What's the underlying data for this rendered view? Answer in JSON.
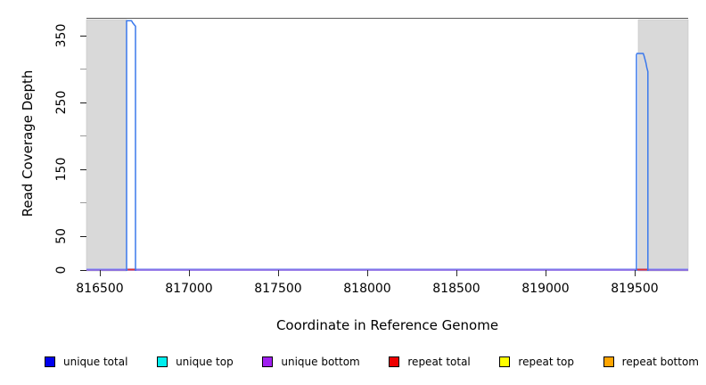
{
  "figure": {
    "xlabel": "Coordinate in Reference Genome",
    "ylabel": "Read Coverage Depth"
  },
  "colors": {
    "masked_region_fill": "#d9d9d9",
    "masked_region_edge": "#c4c4c4",
    "coverage_line": "#3b79ec",
    "repeat_line": "#e13030",
    "zero_line_top": "#93a2f3",
    "zero_line_bottom": "#7c57e2",
    "frame": "#5a5a5a"
  },
  "legend": {
    "items": [
      {
        "label": "unique total",
        "color": "#0000ee"
      },
      {
        "label": "unique top",
        "color": "#00eeee"
      },
      {
        "label": "unique bottom",
        "color": "#a020f0"
      },
      {
        "label": "repeat total",
        "color": "#ee0000"
      },
      {
        "label": "repeat top",
        "color": "#ffff00"
      },
      {
        "label": "repeat bottom",
        "color": "#ffa500"
      }
    ]
  },
  "chart_data": {
    "type": "line",
    "title": "",
    "xlabel": "Coordinate in Reference Genome",
    "ylabel": "Read Coverage Depth",
    "xlim": [
      816425,
      819800
    ],
    "ylim": [
      0,
      377
    ],
    "grid": false,
    "legend_position": "bottom",
    "x_ticks": [
      {
        "value": 816500,
        "label": "816500"
      },
      {
        "value": 817000,
        "label": "817000"
      },
      {
        "value": 817500,
        "label": "817500"
      },
      {
        "value": 818000,
        "label": "818000"
      },
      {
        "value": 818500,
        "label": "818500"
      },
      {
        "value": 819000,
        "label": "819000"
      },
      {
        "value": 819500,
        "label": "819500"
      }
    ],
    "y_ticks_major": [
      {
        "value": 0,
        "label": "0"
      },
      {
        "value": 50,
        "label": "50"
      },
      {
        "value": 150,
        "label": "150"
      },
      {
        "value": 250,
        "label": "250"
      },
      {
        "value": 350,
        "label": "350"
      }
    ],
    "y_ticks_minor": [
      100,
      200,
      300
    ],
    "masked_regions": [
      {
        "x0": 816425,
        "x1": 816650
      },
      {
        "x0": 819520,
        "x1": 819800
      }
    ],
    "series": [
      {
        "name": "unique total",
        "color": "#0000ee",
        "baseline_depth": 0,
        "peaks": [
          {
            "points": [
              [
                816650,
                0
              ],
              [
                816650,
                374
              ],
              [
                816678,
                374
              ],
              [
                816684,
                371
              ],
              [
                816690,
                369
              ],
              [
                816696,
                367
              ],
              [
                816700,
                366
              ],
              [
                816700,
                0
              ]
            ]
          },
          {
            "points": [
              [
                819510,
                0
              ],
              [
                819510,
                323
              ],
              [
                819513,
                325
              ],
              [
                819548,
                325
              ],
              [
                819553,
                321
              ],
              [
                819558,
                316
              ],
              [
                819563,
                311
              ],
              [
                819568,
                304
              ],
              [
                819572,
                300
              ],
              [
                819574,
                298
              ],
              [
                819574,
                0
              ]
            ]
          }
        ]
      },
      {
        "name": "repeat total",
        "color": "#ee0000",
        "baseline_depth": 0,
        "segments": [
          {
            "x0": 816656,
            "x1": 816699,
            "depth": 2
          },
          {
            "x0": 819512,
            "x1": 819571,
            "depth": 2
          }
        ]
      },
      {
        "name": "unique bottom",
        "color": "#a020f0",
        "baseline_depth": 0,
        "note": "zero across full range, visible as purple zero line"
      }
    ]
  }
}
